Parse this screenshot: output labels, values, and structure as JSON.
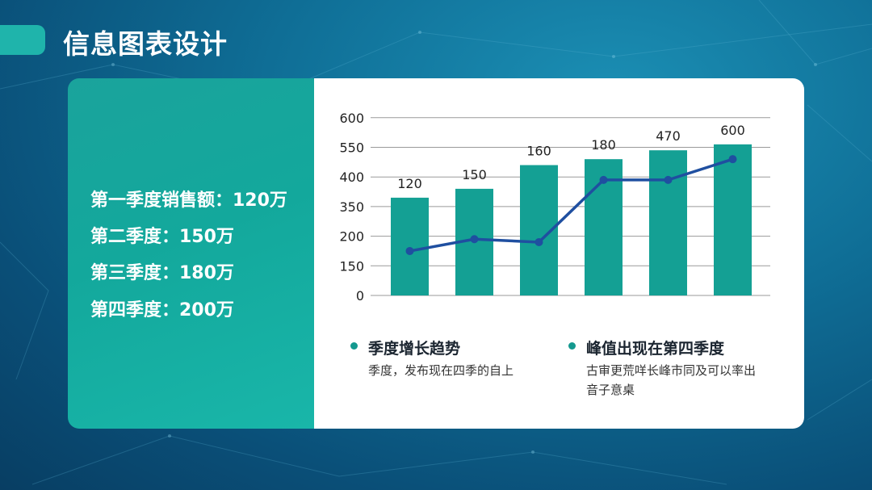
{
  "slide": {
    "title": "信息图表设计"
  },
  "left_panel": {
    "stats": [
      "第一季度销售额：120万",
      "第二季度：150万",
      "第三季度：180万",
      "第四季度：200万"
    ]
  },
  "notes": [
    {
      "title": "季度增长趋势",
      "desc": "季度，发布现在四季的自上"
    },
    {
      "title": "峰值出现在第四季度",
      "desc": "古审更荒咩长峰市同及可以率出音子意桌"
    }
  ],
  "colors": {
    "bar": "#14a094",
    "line": "#1f4fa0",
    "grid": "#9a9a9a",
    "accent": "#1fb4ab"
  },
  "chart_data": {
    "type": "bar",
    "y_tick_labels": [
      "0",
      "150",
      "200",
      "350",
      "400",
      "550",
      "600"
    ],
    "bar_labels": [
      "120",
      "150",
      "160",
      "180",
      "470",
      "600"
    ],
    "bar_values_in_tick_index": [
      3.3,
      3.6,
      4.4,
      4.6,
      4.9,
      5.1
    ],
    "line_values_in_tick_index": [
      1.5,
      1.9,
      1.8,
      3.9,
      3.9,
      4.6
    ],
    "grid": true
  }
}
